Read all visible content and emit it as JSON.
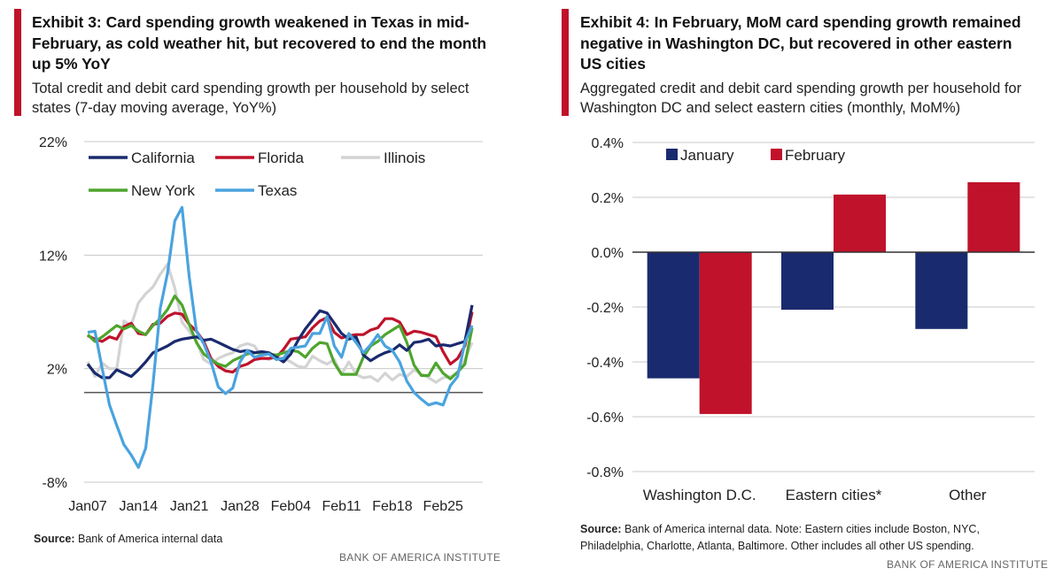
{
  "left": {
    "title": "Exhibit 3: Card spending growth weakened in Texas in mid-February, as cold weather hit, but recovered to end the month up 5% YoY",
    "subtitle": "Total credit and debit card spending growth per household by select states (7-day moving average, YoY%)",
    "source_label": "Source:",
    "source_text": " Bank of America internal data",
    "brand": "BANK OF AMERICA INSTITUTE"
  },
  "right": {
    "title": "Exhibit 4: In February, MoM card spending growth remained negative in Washington DC, but recovered in other eastern US cities",
    "subtitle": "Aggregated credit and debit card spending growth per household for Washington DC and select eastern cities (monthly, MoM%)",
    "source_label": "Source:",
    "source_text": " Bank of America internal data. Note: Eastern cities include Boston, NYC, Philadelphia, Charlotte, Atlanta, Baltimore. Other includes all other US spending.",
    "brand": "BANK OF AMERICA INSTITUTE"
  },
  "colors": {
    "accent": "#c0122b",
    "navy": "#1a2a6e",
    "red": "#c0122b",
    "light_gray": "#d3d3d3",
    "green": "#4ea52c",
    "light_blue": "#4aa3df",
    "grid": "#c8c8c8",
    "baseline": "#555555"
  },
  "chart_data": [
    {
      "type": "line",
      "title": "",
      "xlabel": "",
      "ylabel": "",
      "ylim": [
        -8,
        22
      ],
      "yticks": [
        22,
        12,
        2,
        -8
      ],
      "ytick_labels": [
        "22%",
        "12%",
        "2%",
        "-8%"
      ],
      "grid": true,
      "legend": "top-left",
      "x_tick_labels": [
        "Jan07",
        "Jan14",
        "Jan21",
        "Jan28",
        "Feb04",
        "Feb11",
        "Feb18",
        "Feb25"
      ],
      "x": [
        "Jan07",
        "Jan08",
        "Jan09",
        "Jan10",
        "Jan11",
        "Jan12",
        "Jan13",
        "Jan14",
        "Jan15",
        "Jan16",
        "Jan17",
        "Jan18",
        "Jan19",
        "Jan20",
        "Jan21",
        "Jan22",
        "Jan23",
        "Jan24",
        "Jan25",
        "Jan26",
        "Jan27",
        "Jan28",
        "Jan29",
        "Jan30",
        "Jan31",
        "Feb01",
        "Feb02",
        "Feb03",
        "Feb04",
        "Feb05",
        "Feb06",
        "Feb07",
        "Feb08",
        "Feb09",
        "Feb10",
        "Feb11",
        "Feb12",
        "Feb13",
        "Feb14",
        "Feb15",
        "Feb16",
        "Feb17",
        "Feb18",
        "Feb19",
        "Feb20",
        "Feb21",
        "Feb22",
        "Feb23",
        "Feb24",
        "Feb25",
        "Feb26",
        "Feb27",
        "Feb28",
        "Mar01"
      ],
      "series": [
        {
          "name": "California",
          "color": "#1a2a6e",
          "values": [
            2.4,
            1.6,
            1.2,
            1.2,
            1.9,
            1.6,
            1.3,
            1.9,
            2.6,
            3.4,
            3.7,
            4.0,
            4.4,
            4.6,
            4.7,
            4.8,
            4.5,
            4.6,
            4.3,
            4.0,
            3.7,
            3.5,
            3.6,
            3.4,
            3.5,
            3.4,
            3.0,
            2.6,
            3.3,
            4.5,
            5.5,
            6.3,
            7.1,
            6.9,
            6.0,
            5.1,
            4.6,
            4.8,
            3.2,
            2.7,
            3.1,
            3.4,
            3.6,
            4.1,
            3.6,
            4.3,
            4.4,
            4.6,
            4.0,
            4.1,
            4.0,
            4.2,
            4.4,
            7.6
          ]
        },
        {
          "name": "Florida",
          "color": "#c0122b",
          "values": [
            4.9,
            4.6,
            4.4,
            4.8,
            4.6,
            5.7,
            6.0,
            5.1,
            5.0,
            5.9,
            6.0,
            6.6,
            6.9,
            6.8,
            5.9,
            5.3,
            4.4,
            2.9,
            2.2,
            1.8,
            1.7,
            2.2,
            2.4,
            2.8,
            2.9,
            2.9,
            3.0,
            3.7,
            4.6,
            4.7,
            4.8,
            5.6,
            6.2,
            6.5,
            5.2,
            4.7,
            4.9,
            5.0,
            5.0,
            5.4,
            5.6,
            6.4,
            6.4,
            6.1,
            5.0,
            5.3,
            5.2,
            5.0,
            4.8,
            3.5,
            2.4,
            2.9,
            4.0,
            7.0
          ]
        },
        {
          "name": "Illinois",
          "color": "#d3d3d3",
          "values": [
            2.6,
            1.3,
            2.5,
            2.0,
            2.0,
            6.2,
            5.8,
            7.8,
            8.6,
            9.2,
            10.3,
            11.2,
            9.1,
            6.1,
            5.3,
            4.4,
            2.8,
            2.4,
            2.9,
            3.2,
            3.4,
            4.0,
            4.2,
            4.0,
            3.0,
            2.8,
            3.1,
            2.9,
            2.6,
            2.2,
            2.1,
            3.1,
            2.7,
            2.4,
            2.8,
            1.5,
            2.6,
            1.5,
            1.2,
            1.3,
            0.9,
            1.6,
            1.0,
            1.5,
            1.3,
            1.9,
            1.5,
            1.2,
            0.8,
            1.2,
            1.3,
            1.6,
            2.8,
            4.3
          ]
        },
        {
          "name": "New York",
          "color": "#4ea52c",
          "values": [
            5.0,
            4.4,
            4.8,
            5.3,
            5.8,
            5.5,
            5.8,
            5.3,
            5.0,
            5.8,
            6.4,
            7.2,
            8.4,
            7.6,
            5.9,
            4.3,
            3.3,
            2.8,
            2.4,
            2.2,
            2.7,
            3.0,
            3.3,
            3.4,
            3.4,
            3.3,
            3.2,
            3.4,
            3.6,
            3.5,
            3.0,
            3.8,
            4.3,
            4.2,
            2.5,
            1.5,
            1.5,
            1.5,
            3.0,
            4.0,
            4.4,
            5.0,
            5.4,
            5.8,
            4.3,
            2.3,
            1.4,
            1.4,
            2.5,
            1.6,
            1.1,
            1.7,
            2.4,
            5.6
          ]
        },
        {
          "name": "Texas",
          "color": "#4aa3df",
          "values": [
            5.2,
            5.3,
            2.0,
            -1.2,
            -3.0,
            -4.7,
            -5.6,
            -6.7,
            -5.0,
            0.6,
            7.3,
            10.4,
            15.0,
            16.2,
            10.1,
            5.3,
            4.2,
            2.6,
            0.4,
            -0.2,
            0.3,
            2.6,
            3.6,
            3.0,
            3.2,
            3.3,
            2.8,
            2.9,
            3.8,
            3.9,
            4.0,
            5.1,
            5.1,
            6.6,
            4.0,
            3.0,
            5.1,
            4.3,
            3.4,
            4.1,
            5.0,
            4.0,
            3.6,
            2.6,
            0.9,
            -0.1,
            -0.7,
            -1.2,
            -1.0,
            -1.2,
            0.5,
            1.3,
            4.3,
            5.8
          ]
        }
      ],
      "reference_line": -0.1
    },
    {
      "type": "bar",
      "title": "",
      "xlabel": "",
      "ylabel": "",
      "ylim": [
        -0.8,
        0.4
      ],
      "yticks": [
        0.4,
        0.2,
        0.0,
        -0.2,
        -0.4,
        -0.6,
        -0.8
      ],
      "ytick_labels": [
        "0.4%",
        "0.2%",
        "0.0%",
        "-0.2%",
        "-0.4%",
        "-0.6%",
        "-0.8%"
      ],
      "grid": true,
      "legend": "top-left",
      "categories": [
        "Washington D.C.",
        "Eastern cities*",
        "Other"
      ],
      "series": [
        {
          "name": "January",
          "color": "#1a2a6e",
          "values": [
            -0.46,
            -0.21,
            -0.28
          ]
        },
        {
          "name": "February",
          "color": "#c0122b",
          "values": [
            -0.59,
            0.21,
            0.255
          ]
        }
      ]
    }
  ]
}
